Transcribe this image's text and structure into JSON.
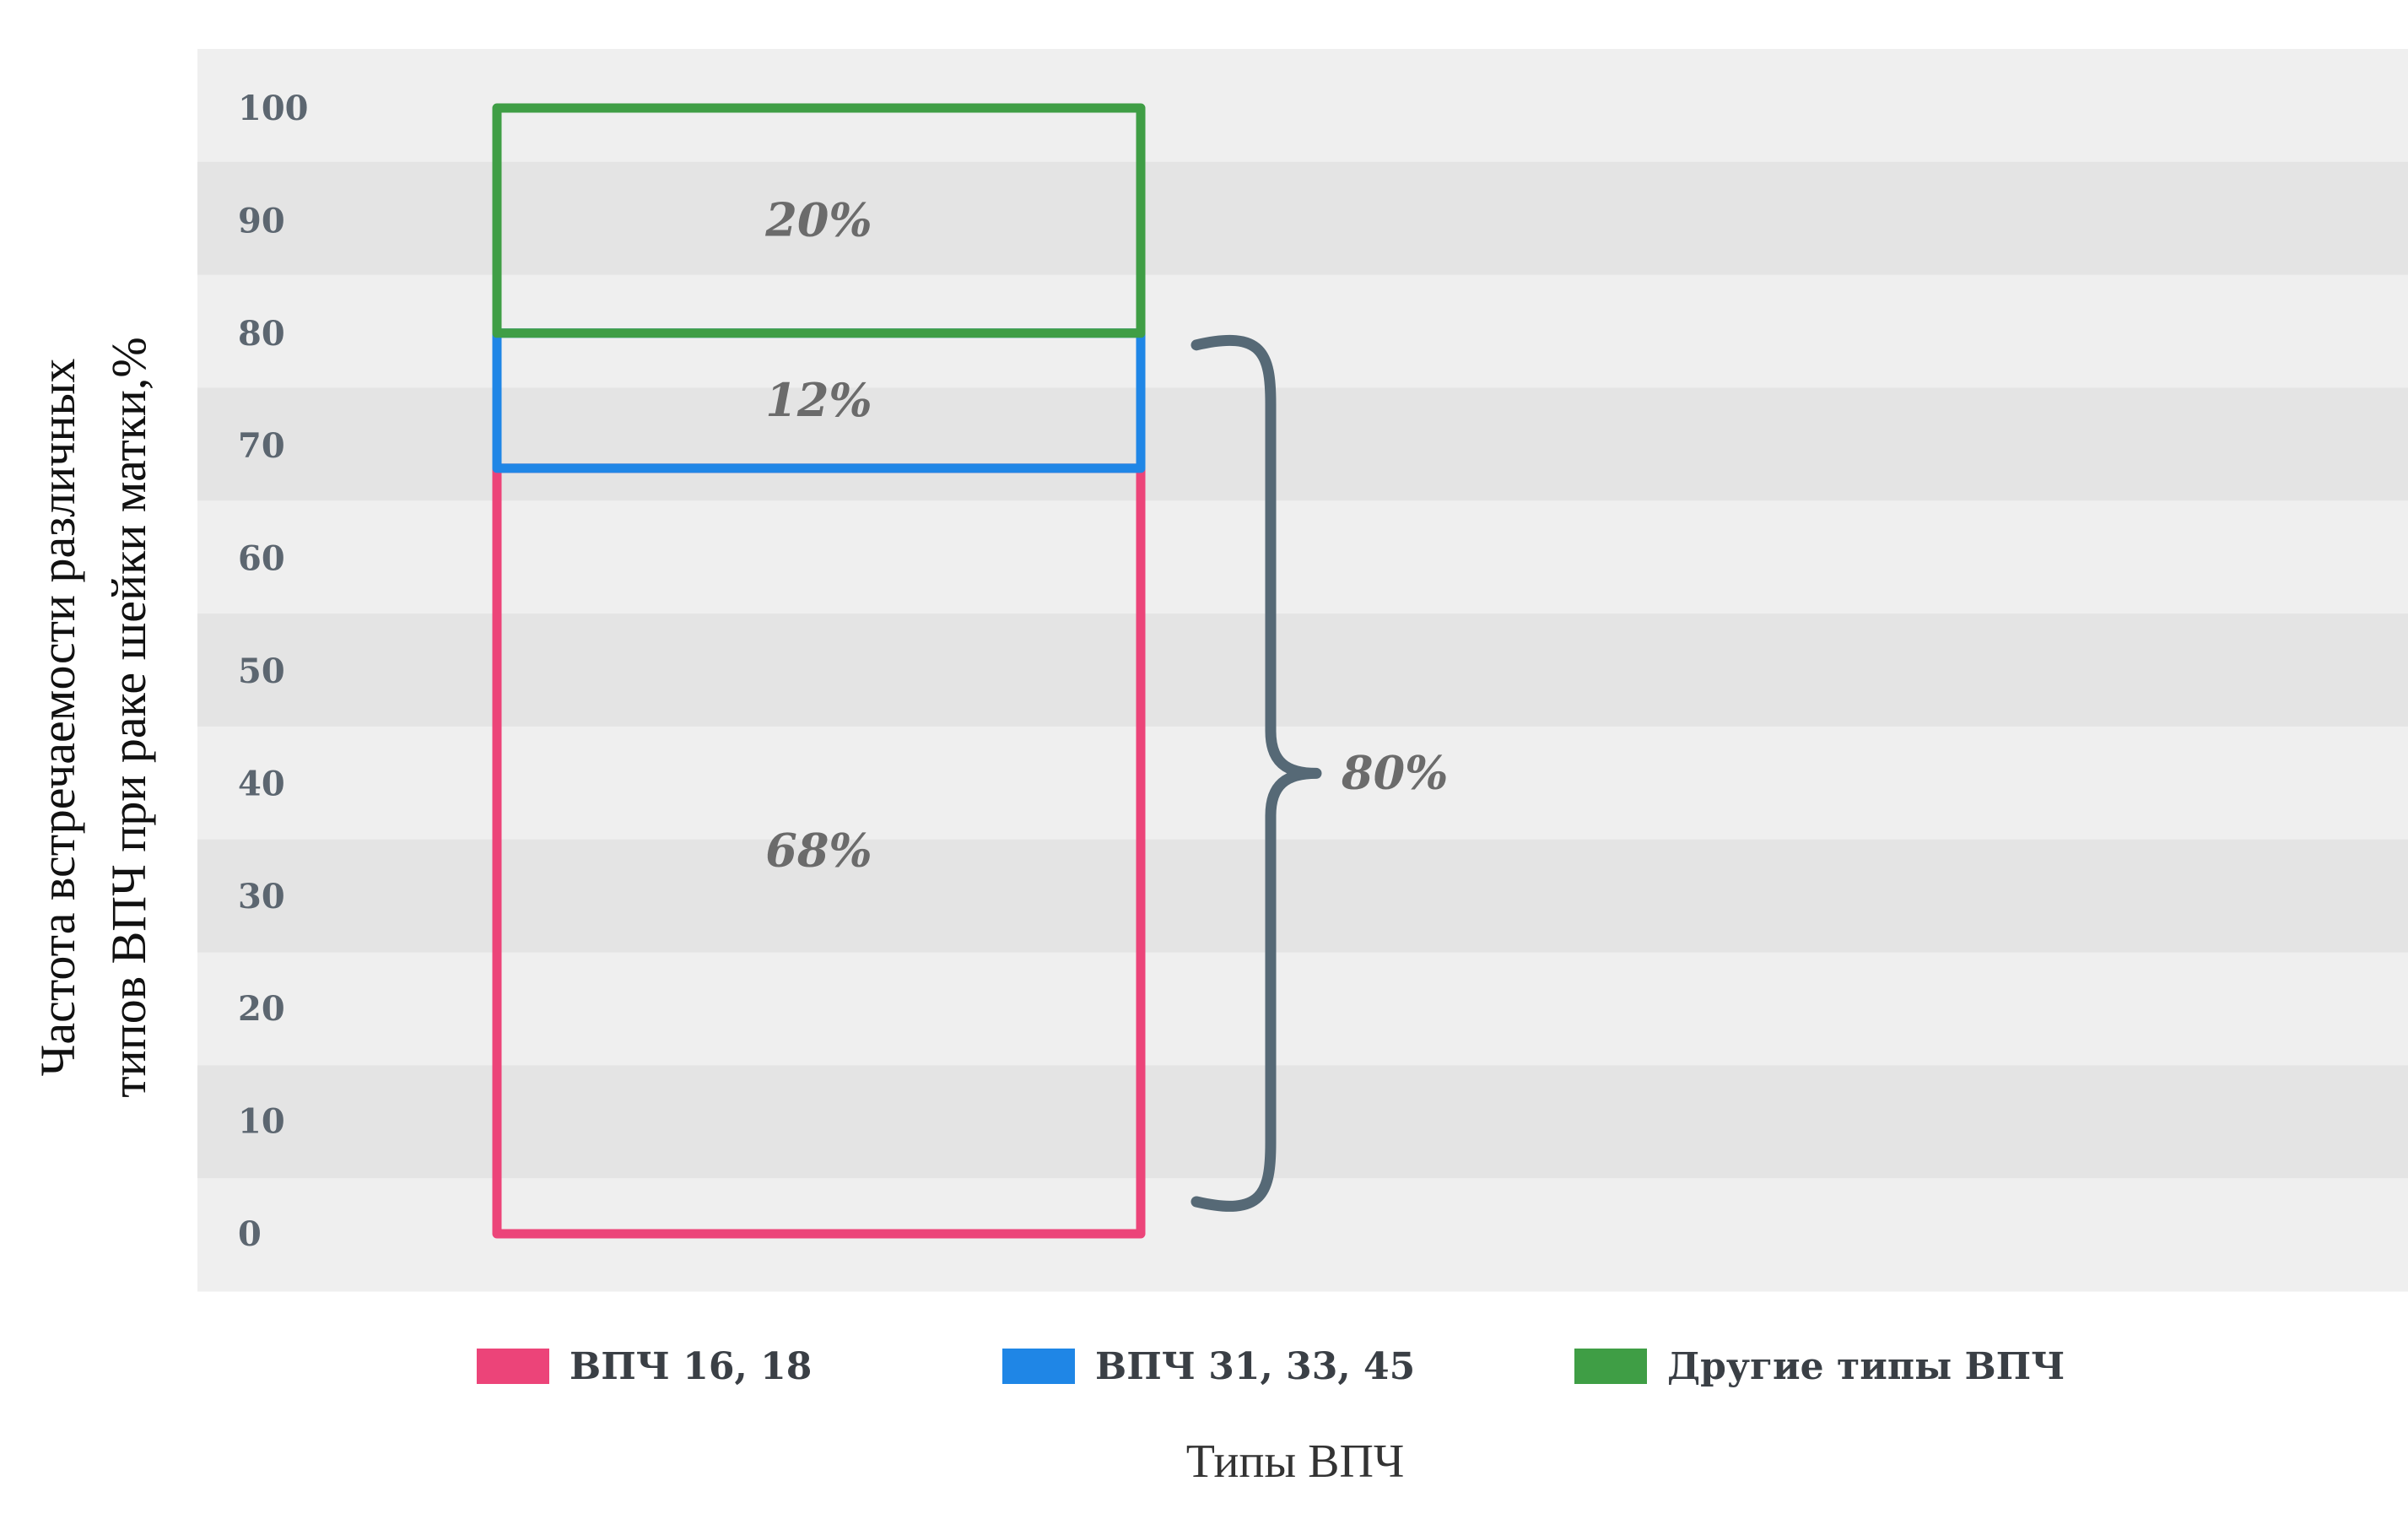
{
  "chart_data": {
    "type": "bar",
    "stacked": true,
    "categories": [
      ""
    ],
    "series": [
      {
        "name": "ВПЧ 16, 18",
        "values": [
          68
        ],
        "label": "68%",
        "color": "#ec4479"
      },
      {
        "name": "ВПЧ 31, 33, 45",
        "values": [
          12
        ],
        "label": "12%",
        "color": "#1f86e6"
      },
      {
        "name": "Другие типы ВПЧ",
        "values": [
          20
        ],
        "label": "20%",
        "color": "#3f9e45"
      }
    ],
    "ylabel_lines": [
      "Частота встречаемости различных",
      "типов ВПЧ при раке шейки матки,%"
    ],
    "xlabel": "Типы ВПЧ",
    "ylim": [
      0,
      100
    ],
    "yticks": [
      "0",
      "10",
      "20",
      "30",
      "40",
      "50",
      "60",
      "70",
      "80",
      "90",
      "100"
    ],
    "bracket": {
      "from": 0,
      "to": 80,
      "label": "80%"
    },
    "legend_position": "bottom",
    "grid": "alternating horizontal bands",
    "colors": {
      "band_light": "#efefef",
      "band_dark": "#e4e4e4",
      "bracket": "#566976"
    }
  }
}
